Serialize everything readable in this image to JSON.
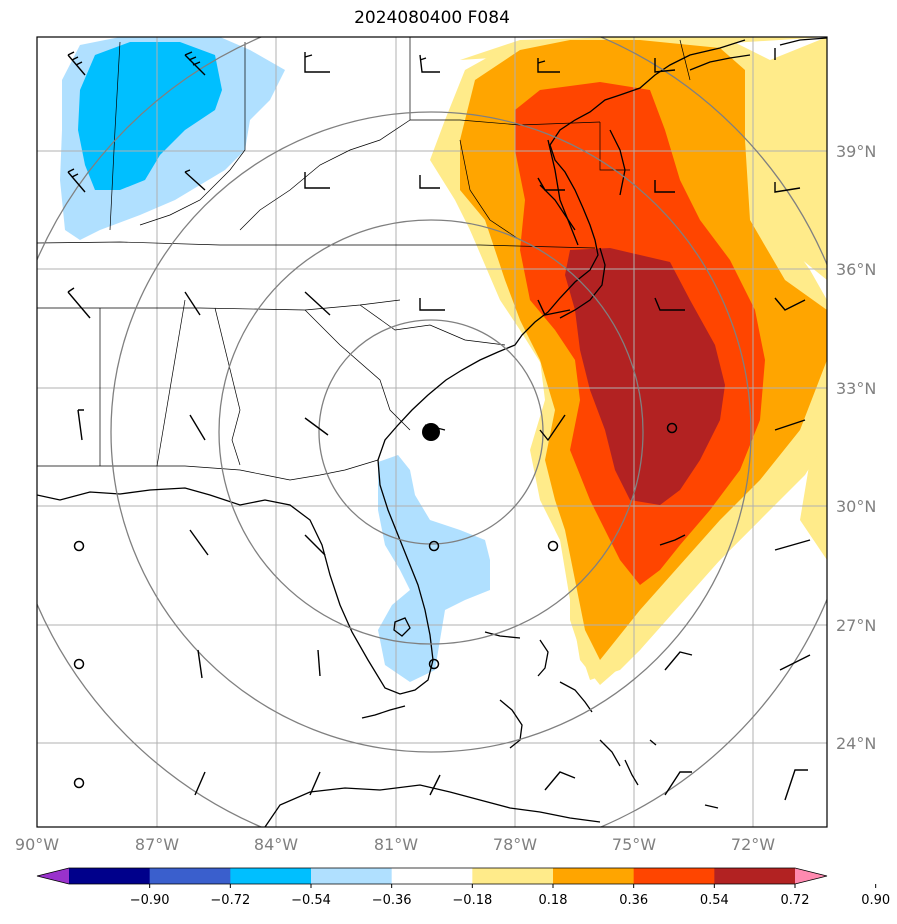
{
  "title": "2024080400 F084",
  "lat_labels": [
    "39°N",
    "36°N",
    "33°N",
    "30°N",
    "27°N",
    "24°N"
  ],
  "lon_labels": [
    "90°W",
    "87°W",
    "84°W",
    "81°W",
    "78°W",
    "75°W",
    "72°W"
  ],
  "colorbar": {
    "ticks": [
      "−0.90",
      "−0.72",
      "−0.54",
      "−0.36",
      "−0.18",
      "0.18",
      "0.36",
      "0.54",
      "0.72",
      "0.90"
    ],
    "colors": [
      "#9932cc",
      "#00008b",
      "#3a5fcd",
      "#00bfff",
      "#b0e0ff",
      "#ffffff",
      "#ffeb8a",
      "#ffa500",
      "#ff4500",
      "#b22222",
      "#ff8ab0"
    ]
  },
  "colors": {
    "land_outline": "#000000",
    "grid": "#b0b0b0",
    "range_rings": "#808080",
    "positive_low": "#ffeb8a",
    "positive_mid": "#ffa500",
    "positive_high": "#ff4500",
    "positive_max": "#b22222",
    "negative_low": "#b0e0ff",
    "negative_mid": "#00bfff"
  }
}
